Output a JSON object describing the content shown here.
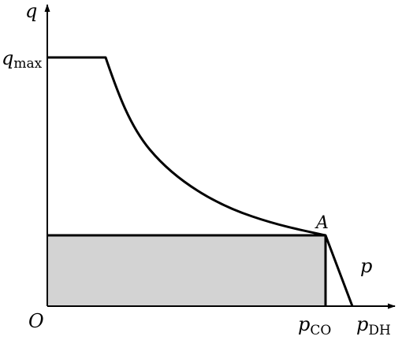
{
  "labels": {
    "y_axis": "q",
    "x_axis": "p",
    "origin": "O",
    "qmax_base": "q",
    "qmax_sub": "max",
    "pco_base": "p",
    "pco_sub": "CO",
    "pdh_base": "p",
    "pdh_sub": "DH",
    "point_a": "A"
  },
  "colors": {
    "line": "#000000",
    "fill": "#d3d3d3",
    "background": "#ffffff"
  }
}
